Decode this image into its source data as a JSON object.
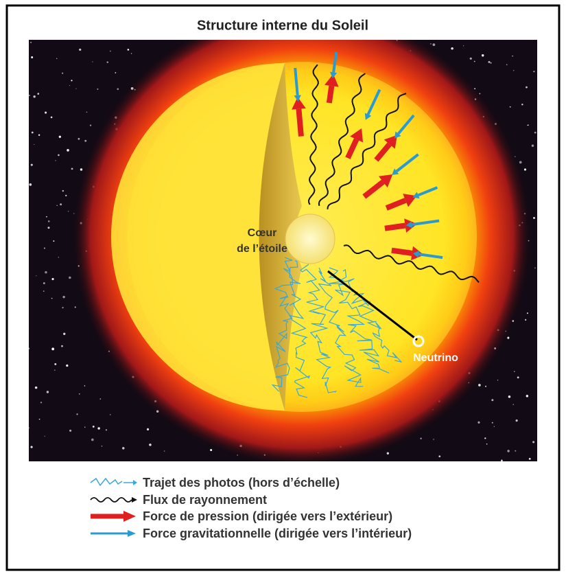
{
  "title": "Structure interne du Soleil",
  "labels": {
    "core": [
      "Cœur",
      "de l’étoile"
    ],
    "neutrino": "Neutrino"
  },
  "legend": [
    "Trajet des photos (hors d’échelle)",
    "Flux de rayonnement",
    "Force de pression (dirigée vers l’extérieur)",
    "Force gravitationnelle (dirigée vers l’intérieur)"
  ]
}
